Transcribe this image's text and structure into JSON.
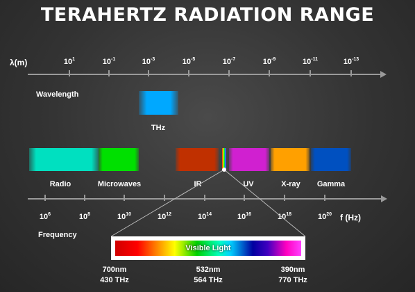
{
  "title": "TERAHERTZ RADIATION RANGE",
  "wavelength_axis": {
    "symbol": "λ(m)",
    "name": "Wavelength",
    "ticks": [
      {
        "base": "10",
        "exp": "1"
      },
      {
        "base": "10",
        "exp": "-1"
      },
      {
        "base": "10",
        "exp": "-3"
      },
      {
        "base": "10",
        "exp": "-5"
      },
      {
        "base": "10",
        "exp": "-7"
      },
      {
        "base": "10",
        "exp": "-9"
      },
      {
        "base": "10",
        "exp": "-11"
      },
      {
        "base": "10",
        "exp": "-13"
      }
    ]
  },
  "thz": {
    "label": "THz",
    "color": "#00a0ff"
  },
  "bands": [
    {
      "label": "Radio",
      "color": "#00e0c0"
    },
    {
      "label": "Microwaves",
      "color": "#00e000"
    },
    {
      "label": "IR",
      "color": "#c03000"
    },
    {
      "label": "UV",
      "color": "#d020d0"
    },
    {
      "label": "X-ray",
      "color": "#ffa000"
    },
    {
      "label": "Gamma",
      "color": "#0050c0"
    }
  ],
  "frequency_axis": {
    "symbol": "f (Hz)",
    "name": "Frequency",
    "ticks": [
      {
        "base": "10",
        "exp": "6"
      },
      {
        "base": "10",
        "exp": "8"
      },
      {
        "base": "10",
        "exp": "10"
      },
      {
        "base": "10",
        "exp": "12"
      },
      {
        "base": "10",
        "exp": "14"
      },
      {
        "base": "10",
        "exp": "16"
      },
      {
        "base": "10",
        "exp": "18"
      },
      {
        "base": "10",
        "exp": "20"
      }
    ]
  },
  "visible_light": {
    "label": "Visible Light",
    "points": [
      {
        "nm": "700nm",
        "thz": "430 THz"
      },
      {
        "nm": "532nm",
        "thz": "564 THz"
      },
      {
        "nm": "390nm",
        "thz": "770 THz"
      }
    ]
  }
}
